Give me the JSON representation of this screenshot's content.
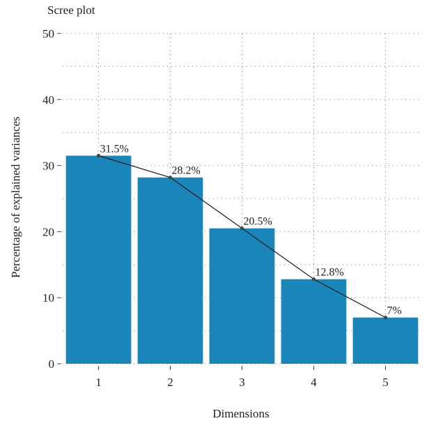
{
  "chart_data": {
    "type": "bar",
    "title": "Scree plot",
    "xlabel": "Dimensions",
    "ylabel": "Percentage of explained variances",
    "categories": [
      "1",
      "2",
      "3",
      "4",
      "5"
    ],
    "values": [
      31.5,
      28.2,
      20.5,
      12.8,
      7.0
    ],
    "data_labels": [
      "31.5%",
      "28.2%",
      "20.5%",
      "12.8%",
      "7%"
    ],
    "ylim": [
      0,
      50
    ],
    "yticks": [
      0,
      10,
      20,
      30,
      40,
      50
    ],
    "overlay": "line-with-points",
    "grid": true,
    "bar_color": "#1a85b8",
    "line_color": "#1a1a1a"
  }
}
